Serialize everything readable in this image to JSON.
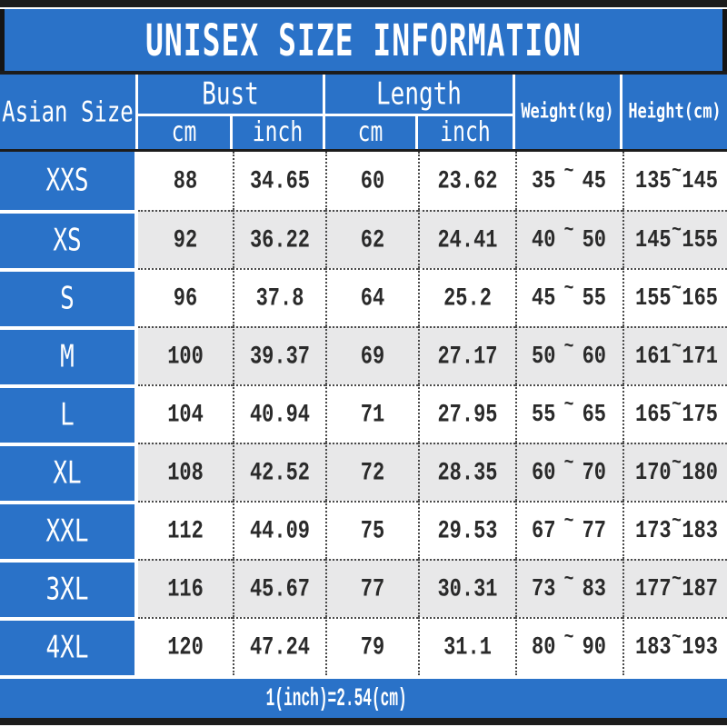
{
  "title": "UNISEX SIZE INFORMATION",
  "tilde": "~",
  "header": {
    "size_column": "Asian Size",
    "bust": "Bust",
    "length": "Length",
    "weight": "Weight(kg)",
    "height": "Height(cm)",
    "cm": "cm",
    "inch": "inch"
  },
  "colors": {
    "blue": "#2a72c8",
    "alt_row_gray": "#e8e8e9",
    "border_black": "#1c1c1c",
    "text_dark": "#2a2a2a",
    "white": "#ffffff"
  },
  "chart_data": {
    "type": "table",
    "title": "UNISEX SIZE INFORMATION",
    "columns": [
      "Asian Size",
      "Bust cm",
      "Bust inch",
      "Length cm",
      "Length inch",
      "Weight(kg)",
      "Height(cm)"
    ],
    "rows": [
      {
        "size": "XXS",
        "bust_cm": "88",
        "bust_inch": "34.65",
        "length_cm": "60",
        "length_inch": "23.62",
        "weight_kg": {
          "min": "35",
          "max": "45"
        },
        "height_cm": {
          "min": "135",
          "max": "145"
        }
      },
      {
        "size": "XS",
        "bust_cm": "92",
        "bust_inch": "36.22",
        "length_cm": "62",
        "length_inch": "24.41",
        "weight_kg": {
          "min": "40",
          "max": "50"
        },
        "height_cm": {
          "min": "145",
          "max": "155"
        }
      },
      {
        "size": "S",
        "bust_cm": "96",
        "bust_inch": "37.8",
        "length_cm": "64",
        "length_inch": "25.2",
        "weight_kg": {
          "min": "45",
          "max": "55"
        },
        "height_cm": {
          "min": "155",
          "max": "165"
        }
      },
      {
        "size": "M",
        "bust_cm": "100",
        "bust_inch": "39.37",
        "length_cm": "69",
        "length_inch": "27.17",
        "weight_kg": {
          "min": "50",
          "max": "60"
        },
        "height_cm": {
          "min": "161",
          "max": "171"
        }
      },
      {
        "size": "L",
        "bust_cm": "104",
        "bust_inch": "40.94",
        "length_cm": "71",
        "length_inch": "27.95",
        "weight_kg": {
          "min": "55",
          "max": "65"
        },
        "height_cm": {
          "min": "165",
          "max": "175"
        }
      },
      {
        "size": "XL",
        "bust_cm": "108",
        "bust_inch": "42.52",
        "length_cm": "72",
        "length_inch": "28.35",
        "weight_kg": {
          "min": "60",
          "max": "70"
        },
        "height_cm": {
          "min": "170",
          "max": "180"
        }
      },
      {
        "size": "XXL",
        "bust_cm": "112",
        "bust_inch": "44.09",
        "length_cm": "75",
        "length_inch": "29.53",
        "weight_kg": {
          "min": "67",
          "max": "77"
        },
        "height_cm": {
          "min": "173",
          "max": "183"
        }
      },
      {
        "size": "3XL",
        "bust_cm": "116",
        "bust_inch": "45.67",
        "length_cm": "77",
        "length_inch": "30.31",
        "weight_kg": {
          "min": "73",
          "max": "83"
        },
        "height_cm": {
          "min": "177",
          "max": "187"
        }
      },
      {
        "size": "4XL",
        "bust_cm": "120",
        "bust_inch": "47.24",
        "length_cm": "79",
        "length_inch": "31.1",
        "weight_kg": {
          "min": "80",
          "max": "90"
        },
        "height_cm": {
          "min": "183",
          "max": "193"
        }
      }
    ],
    "footnote": "1(inch)=2.54(cm)"
  }
}
